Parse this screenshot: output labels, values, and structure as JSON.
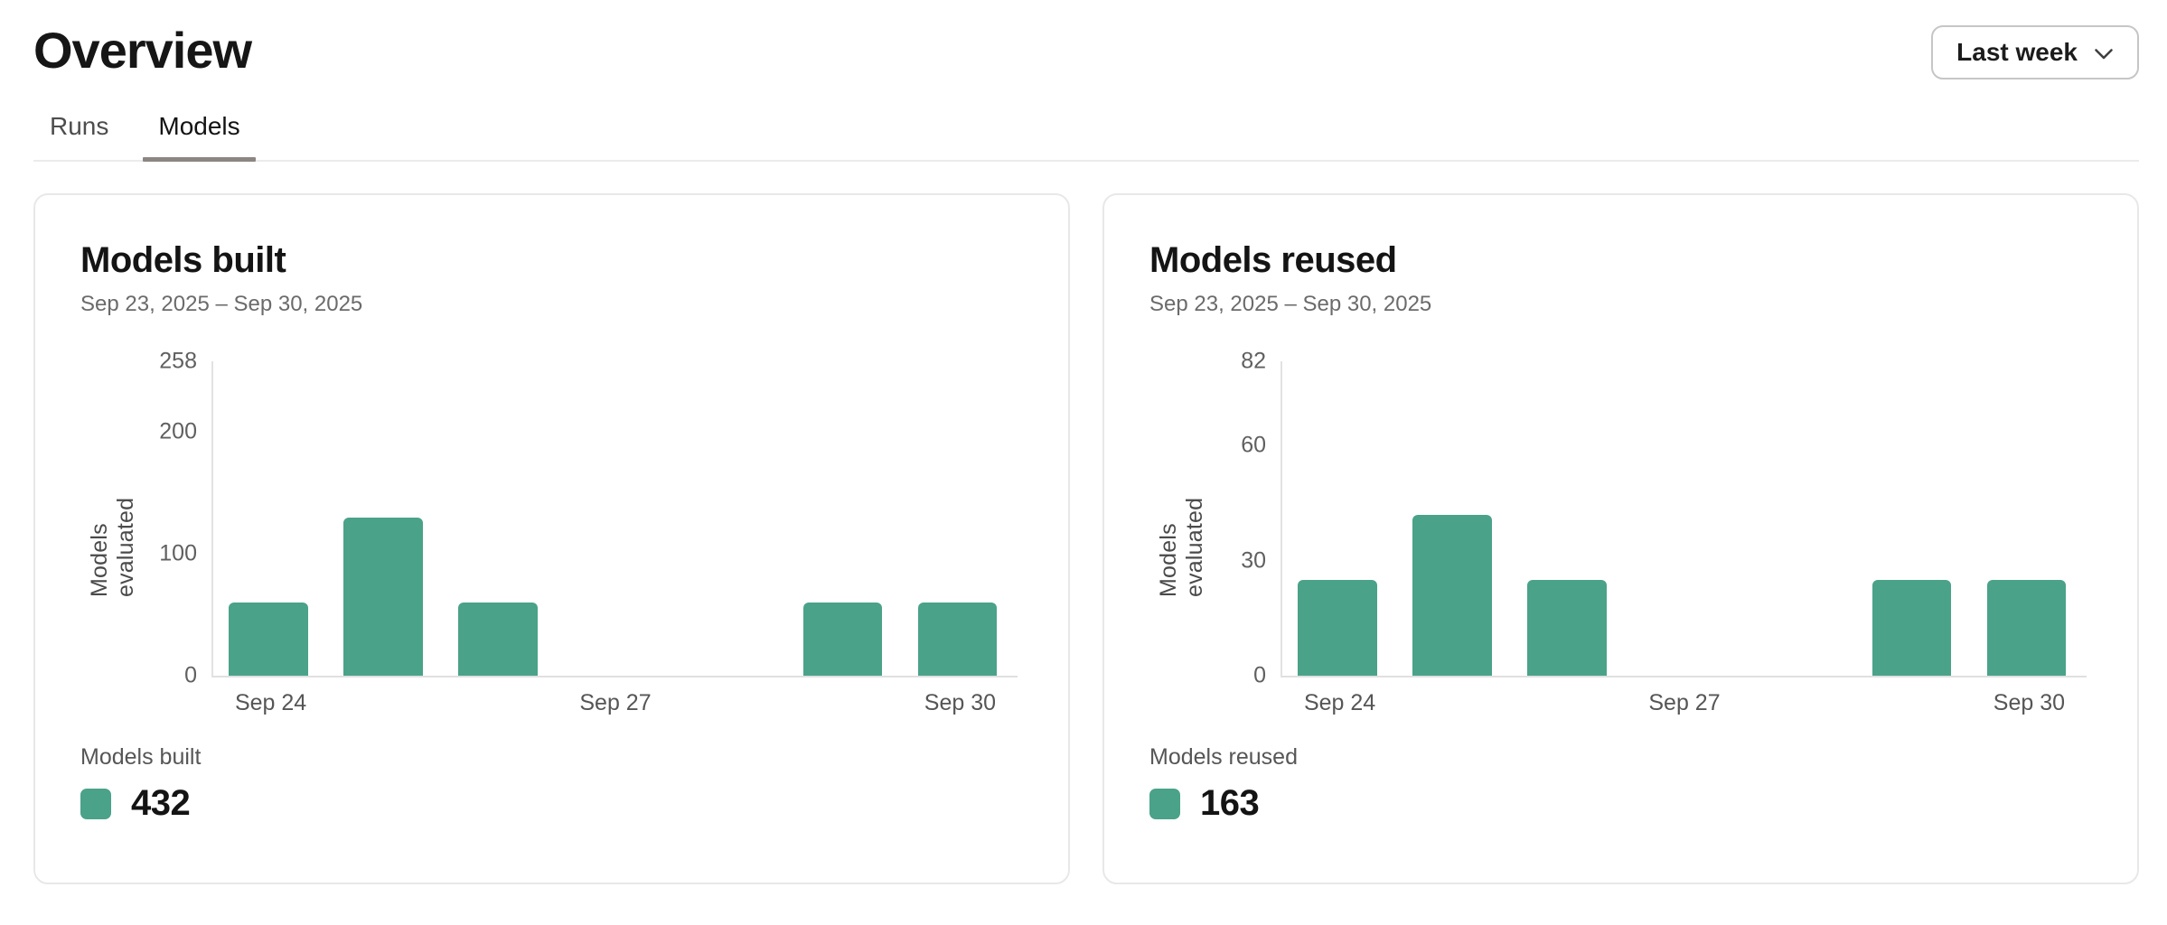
{
  "header": {
    "title": "Overview"
  },
  "range_selector": {
    "label": "Last week"
  },
  "tabs": [
    {
      "label": "Runs",
      "active": false
    },
    {
      "label": "Models",
      "active": true
    }
  ],
  "colors": {
    "bar_green": "#4aa289",
    "active_tab_underline": "#8c8683",
    "axis_line": "#e2e2e2"
  },
  "cards": [
    {
      "title": "Models built",
      "date_range": "Sep 23, 2025 – Sep 30, 2025",
      "legend": {
        "label": "Models built",
        "value": "432"
      }
    },
    {
      "title": "Models reused",
      "date_range": "Sep 23, 2025 – Sep 30, 2025",
      "legend": {
        "label": "Models reused",
        "value": "163"
      }
    }
  ],
  "chart_data": [
    {
      "type": "bar",
      "title": "Models built",
      "subtitle": "Sep 23, 2025 – Sep 30, 2025",
      "categories": [
        "Sep 24",
        "Sep 25",
        "Sep 26",
        "Sep 27",
        "Sep 28",
        "Sep 29",
        "Sep 30"
      ],
      "values": [
        60,
        130,
        60,
        0,
        0,
        60,
        60
      ],
      "ylabel": "Models evaluated",
      "xlabel": "",
      "ylim": [
        0,
        258
      ],
      "yticks": [
        0,
        100,
        200,
        258
      ],
      "xticks_shown": [
        {
          "index": 0,
          "label": "Sep 24"
        },
        {
          "index": 3,
          "label": "Sep 27"
        },
        {
          "index": 6,
          "label": "Sep 30"
        }
      ],
      "grid": false,
      "bar_color": "#4aa289",
      "legend": {
        "label": "Models built",
        "total": 432,
        "position": "bottom-left"
      }
    },
    {
      "type": "bar",
      "title": "Models reused",
      "subtitle": "Sep 23, 2025 – Sep 30, 2025",
      "categories": [
        "Sep 24",
        "Sep 25",
        "Sep 26",
        "Sep 27",
        "Sep 28",
        "Sep 29",
        "Sep 30"
      ],
      "values": [
        25,
        42,
        25,
        0,
        0,
        25,
        25
      ],
      "ylabel": "Models evaluated",
      "xlabel": "",
      "ylim": [
        0,
        82
      ],
      "yticks": [
        0,
        30,
        60,
        82
      ],
      "xticks_shown": [
        {
          "index": 0,
          "label": "Sep 24"
        },
        {
          "index": 3,
          "label": "Sep 27"
        },
        {
          "index": 6,
          "label": "Sep 30"
        }
      ],
      "grid": false,
      "bar_color": "#4aa289",
      "legend": {
        "label": "Models reused",
        "total": 163,
        "position": "bottom-left"
      }
    }
  ]
}
